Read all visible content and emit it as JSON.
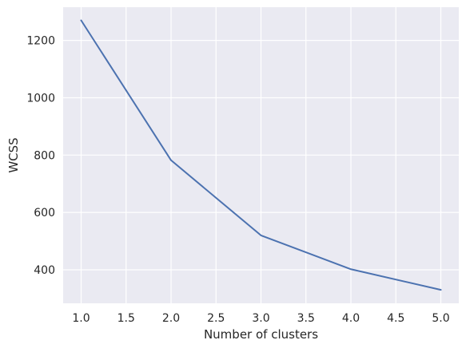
{
  "chart_data": {
    "type": "line",
    "title": "",
    "xlabel": "Number of clusters",
    "ylabel": "WCSS",
    "x": [
      1,
      2,
      3,
      4,
      5
    ],
    "series": [
      {
        "values": [
          1270,
          782,
          520,
          402,
          330
        ],
        "color": "#4C72B0"
      }
    ],
    "xlim": [
      0.8,
      5.2
    ],
    "ylim": [
      283,
      1316
    ],
    "xticks": [
      1.0,
      1.5,
      2.0,
      2.5,
      3.0,
      3.5,
      4.0,
      4.5,
      5.0
    ],
    "xtick_labels": [
      "1.0",
      "1.5",
      "2.0",
      "2.5",
      "3.0",
      "3.5",
      "4.0",
      "4.5",
      "5.0"
    ],
    "yticks": [
      400,
      600,
      800,
      1000,
      1200
    ],
    "ytick_labels": [
      "400",
      "600",
      "800",
      "1000",
      "1200"
    ],
    "grid": true,
    "legend": "none",
    "background_color": "#EAEAF2",
    "grid_color": "#FFFFFF"
  }
}
